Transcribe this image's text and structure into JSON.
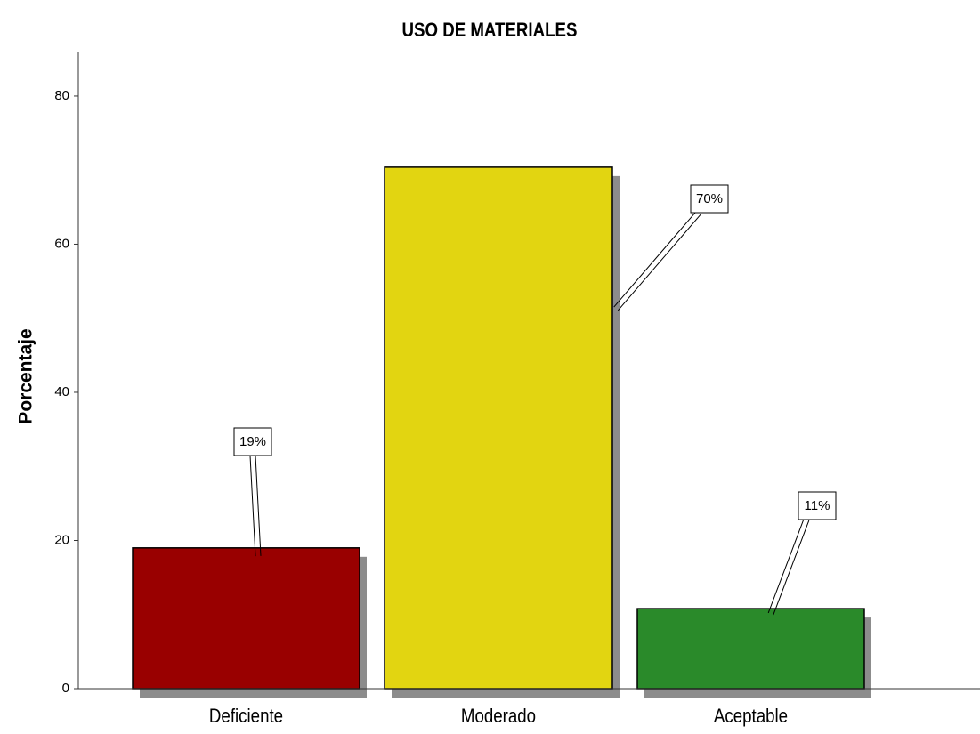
{
  "chart_data": {
    "type": "bar",
    "title": "USO DE MATERIALES",
    "y_label": "Porcentaje",
    "categories": [
      "Deficiente",
      "Moderado",
      "Aceptable"
    ],
    "values": [
      19,
      70.4,
      10.8
    ],
    "value_labels": [
      "19%",
      "70%",
      "11%"
    ],
    "colors": [
      "#990000",
      "#e2d511",
      "#2a8a2a"
    ],
    "ylim": [
      0,
      86
    ],
    "yticks": [
      0,
      20,
      40,
      60,
      80
    ],
    "grid": false
  }
}
